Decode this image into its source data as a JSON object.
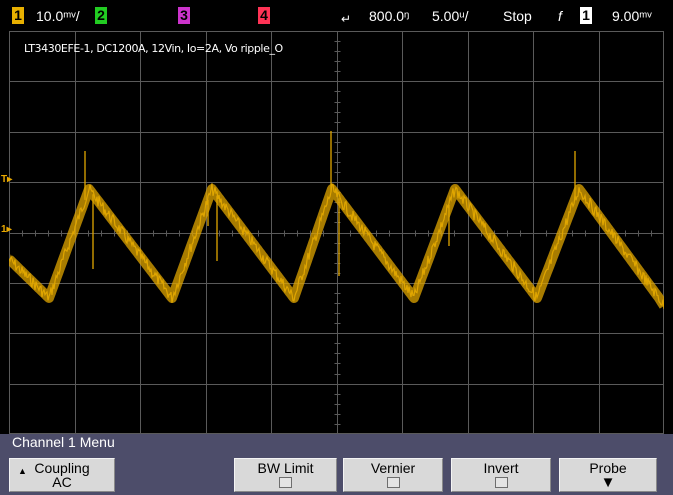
{
  "status_bar": {
    "ch1_label": "1",
    "ch1_scale": "10.0ᵐᵛ/",
    "ch2_label": "2",
    "ch3_label": "3",
    "ch4_label": "4",
    "time_delay": "800.0ᵑ",
    "time_scale": "5.00ᵘ/",
    "run_state": "Stop",
    "trigger_slope_symbol": "f",
    "trigger_source": "1",
    "trigger_level": "9.00ᵐᵛ",
    "colors": {
      "ch1": "#e8b000",
      "ch2": "#22cc22",
      "ch3": "#cc33cc",
      "ch4": "#ff3355"
    }
  },
  "screen": {
    "caption": "LT3430EFE-1, DC1200A, 12Vin, Io=2A, Vo ripple_O",
    "trace_color": "#e0a600",
    "grid_color": "#5a5a5a",
    "marker_t": "T",
    "marker_1": "1"
  },
  "menu": {
    "title": "Channel 1  Menu",
    "softkeys": [
      {
        "label": "Coupling",
        "value": "AC",
        "type": "select"
      },
      {
        "label": "",
        "type": "blank"
      },
      {
        "label": "BW Limit",
        "type": "checkbox",
        "checked": false
      },
      {
        "label": "Vernier",
        "type": "checkbox",
        "checked": false
      },
      {
        "label": "Invert",
        "type": "checkbox",
        "checked": false
      },
      {
        "label": "Probe",
        "type": "submenu"
      }
    ]
  }
}
